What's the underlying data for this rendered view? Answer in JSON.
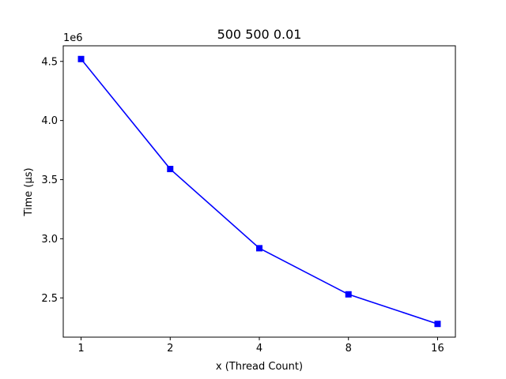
{
  "chart_data": {
    "type": "line",
    "title": "500 500 0.01",
    "xlabel": "x (Thread Count)",
    "ylabel": "Time (µs)",
    "y_offset_label": "1e6",
    "x_scale": "log2",
    "categories": [
      "1",
      "2",
      "4",
      "8",
      "16"
    ],
    "x": [
      1,
      2,
      4,
      8,
      16
    ],
    "series": [
      {
        "color": "#0000ff",
        "marker": "square",
        "values": [
          4520000,
          3590000,
          2920000,
          2530000,
          2280000
        ]
      }
    ],
    "yticks": [
      {
        "value": 2500000,
        "label": "2.5"
      },
      {
        "value": 3000000,
        "label": "3.0"
      },
      {
        "value": 3500000,
        "label": "3.5"
      },
      {
        "value": 4000000,
        "label": "4.0"
      },
      {
        "value": 4500000,
        "label": "4.5"
      }
    ],
    "ylim": [
      2168000,
      4632000
    ],
    "grid": false,
    "legend": "none"
  }
}
